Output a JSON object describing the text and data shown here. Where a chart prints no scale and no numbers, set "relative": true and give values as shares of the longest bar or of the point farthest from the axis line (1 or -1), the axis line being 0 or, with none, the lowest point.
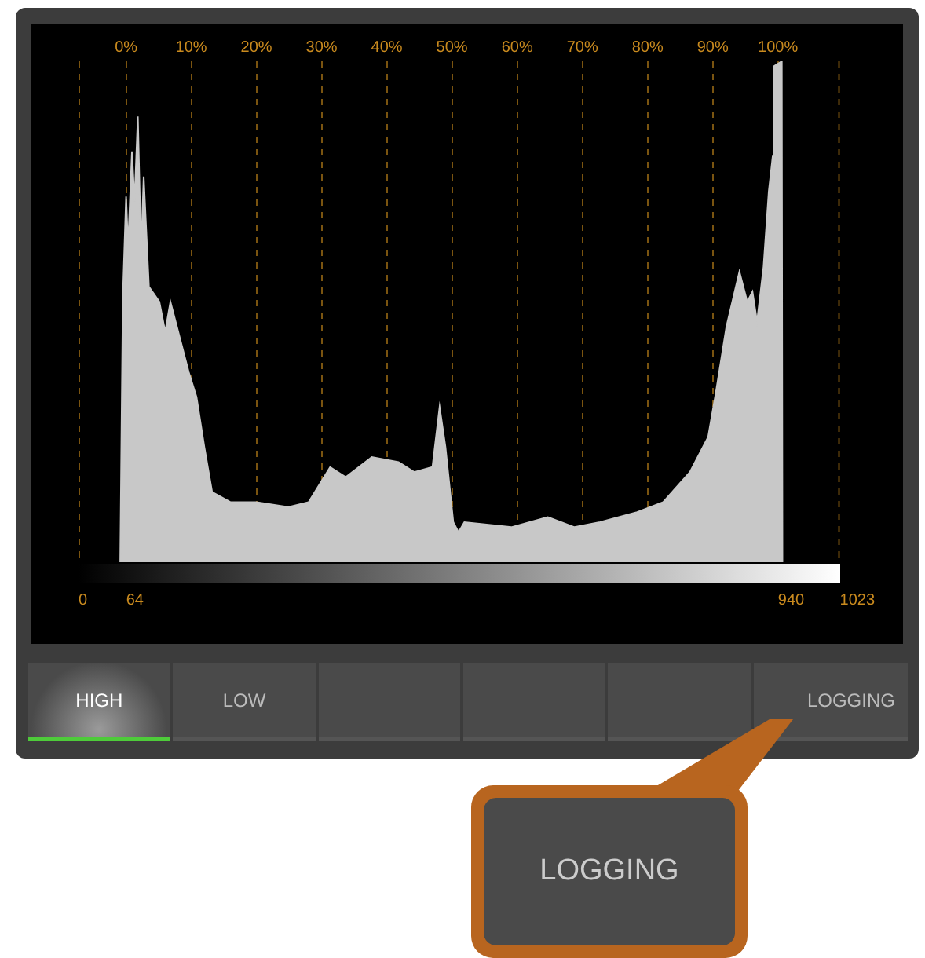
{
  "chart_data": {
    "type": "area",
    "relative": true,
    "x": [
      -0.9,
      -0.5,
      0,
      0.3,
      0.9,
      1.3,
      1.8,
      2.3,
      2.7,
      3.5,
      5.1,
      6.0,
      6.8,
      8.4,
      9.6,
      10.8,
      12.0,
      13.2,
      16.0,
      20.0,
      24.9,
      28.0,
      31.3,
      33.7,
      37.7,
      41.8,
      44.2,
      47.0,
      48.1,
      49.0,
      50.2,
      51.0,
      51.9,
      59.1,
      64.7,
      68.8,
      72.7,
      78.4,
      82.4,
      86.5,
      89.3,
      90.5,
      92.1,
      94.1,
      95.3,
      96.1,
      96.8,
      97.8,
      98.6,
      99.2,
      99.4,
      100.6,
      100.7
    ],
    "series": [
      {
        "color": "#c8c8c8",
        "values": [
          0,
          0.53,
          0.73,
          0.63,
          0.82,
          0.72,
          0.89,
          0.62,
          0.77,
          0.55,
          0.52,
          0.46,
          0.52,
          0.44,
          0.38,
          0.33,
          0.23,
          0.14,
          0.12,
          0.12,
          0.11,
          0.12,
          0.19,
          0.17,
          0.21,
          0.2,
          0.18,
          0.19,
          0.31,
          0.23,
          0.08,
          0.06,
          0.08,
          0.07,
          0.09,
          0.07,
          0.08,
          0.1,
          0.12,
          0.18,
          0.25,
          0.34,
          0.47,
          0.58,
          0.52,
          0.54,
          0.48,
          0.59,
          0.74,
          0.81,
          0.99,
          1,
          0
        ]
      }
    ],
    "xlim": [
      -7.3,
      109.5
    ],
    "xticks": [
      {
        "value": 0,
        "label": "0%"
      },
      {
        "value": 10,
        "label": "10%"
      },
      {
        "value": 20,
        "label": "20%"
      },
      {
        "value": 30,
        "label": "30%"
      },
      {
        "value": 40,
        "label": "40%"
      },
      {
        "value": 50,
        "label": "50%"
      },
      {
        "value": 60,
        "label": "60%"
      },
      {
        "value": 70,
        "label": "70%"
      },
      {
        "value": 80,
        "label": "80%"
      },
      {
        "value": 90,
        "label": "90%"
      },
      {
        "value": 100,
        "label": "100%"
      }
    ],
    "x2lim": [
      0,
      1023
    ],
    "x2ticks": [
      0,
      64,
      940,
      1023
    ],
    "grid": "x",
    "marker": "none",
    "annotations": [
      "HIGH",
      "LOW",
      "LOGGING",
      "LOGGING"
    ]
  }
}
